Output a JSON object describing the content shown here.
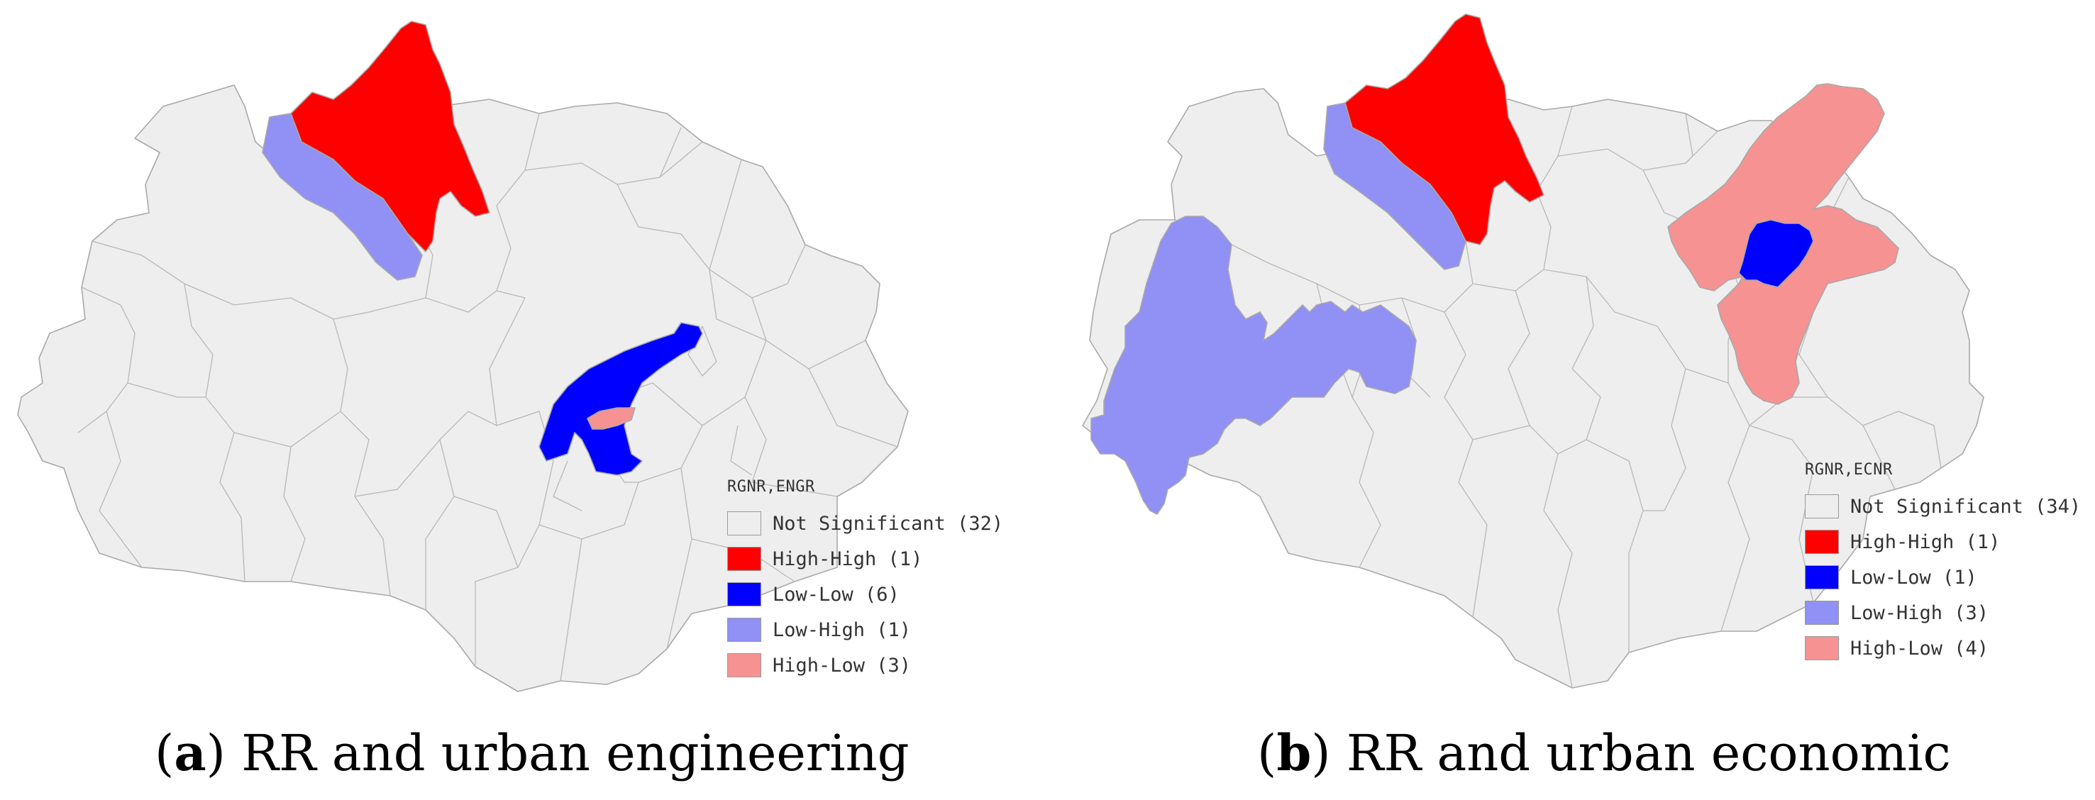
{
  "colors": {
    "not_significant": "#eeeeee",
    "high_high": "#ff0000",
    "low_low": "#0000ff",
    "low_high": "#9090f5",
    "high_low": "#f69292",
    "boundary": "#a9a9a9"
  },
  "panels": [
    {
      "id": "a",
      "caption_letter": "a",
      "caption_text": "RR and urban engineering",
      "legend_title": "RGNR,ENGR",
      "legend": [
        {
          "label": "Not Significant (32)",
          "color": "#eeeeee"
        },
        {
          "label": "High-High (1)",
          "color": "#ff0000"
        },
        {
          "label": "Low-Low (6)",
          "color": "#0000ff"
        },
        {
          "label": "Low-High (1)",
          "color": "#9090f5"
        },
        {
          "label": "High-Low (3)",
          "color": "#f69292"
        }
      ]
    },
    {
      "id": "b",
      "caption_letter": "b",
      "caption_text": "RR and urban economic",
      "legend_title": "RGNR,ECNR",
      "legend": [
        {
          "label": "Not Significant (34)",
          "color": "#eeeeee"
        },
        {
          "label": "High-High (1)",
          "color": "#ff0000"
        },
        {
          "label": "Low-Low (1)",
          "color": "#0000ff"
        },
        {
          "label": "Low-High (3)",
          "color": "#9090f5"
        },
        {
          "label": "High-Low (4)",
          "color": "#f69292"
        }
      ]
    }
  ]
}
